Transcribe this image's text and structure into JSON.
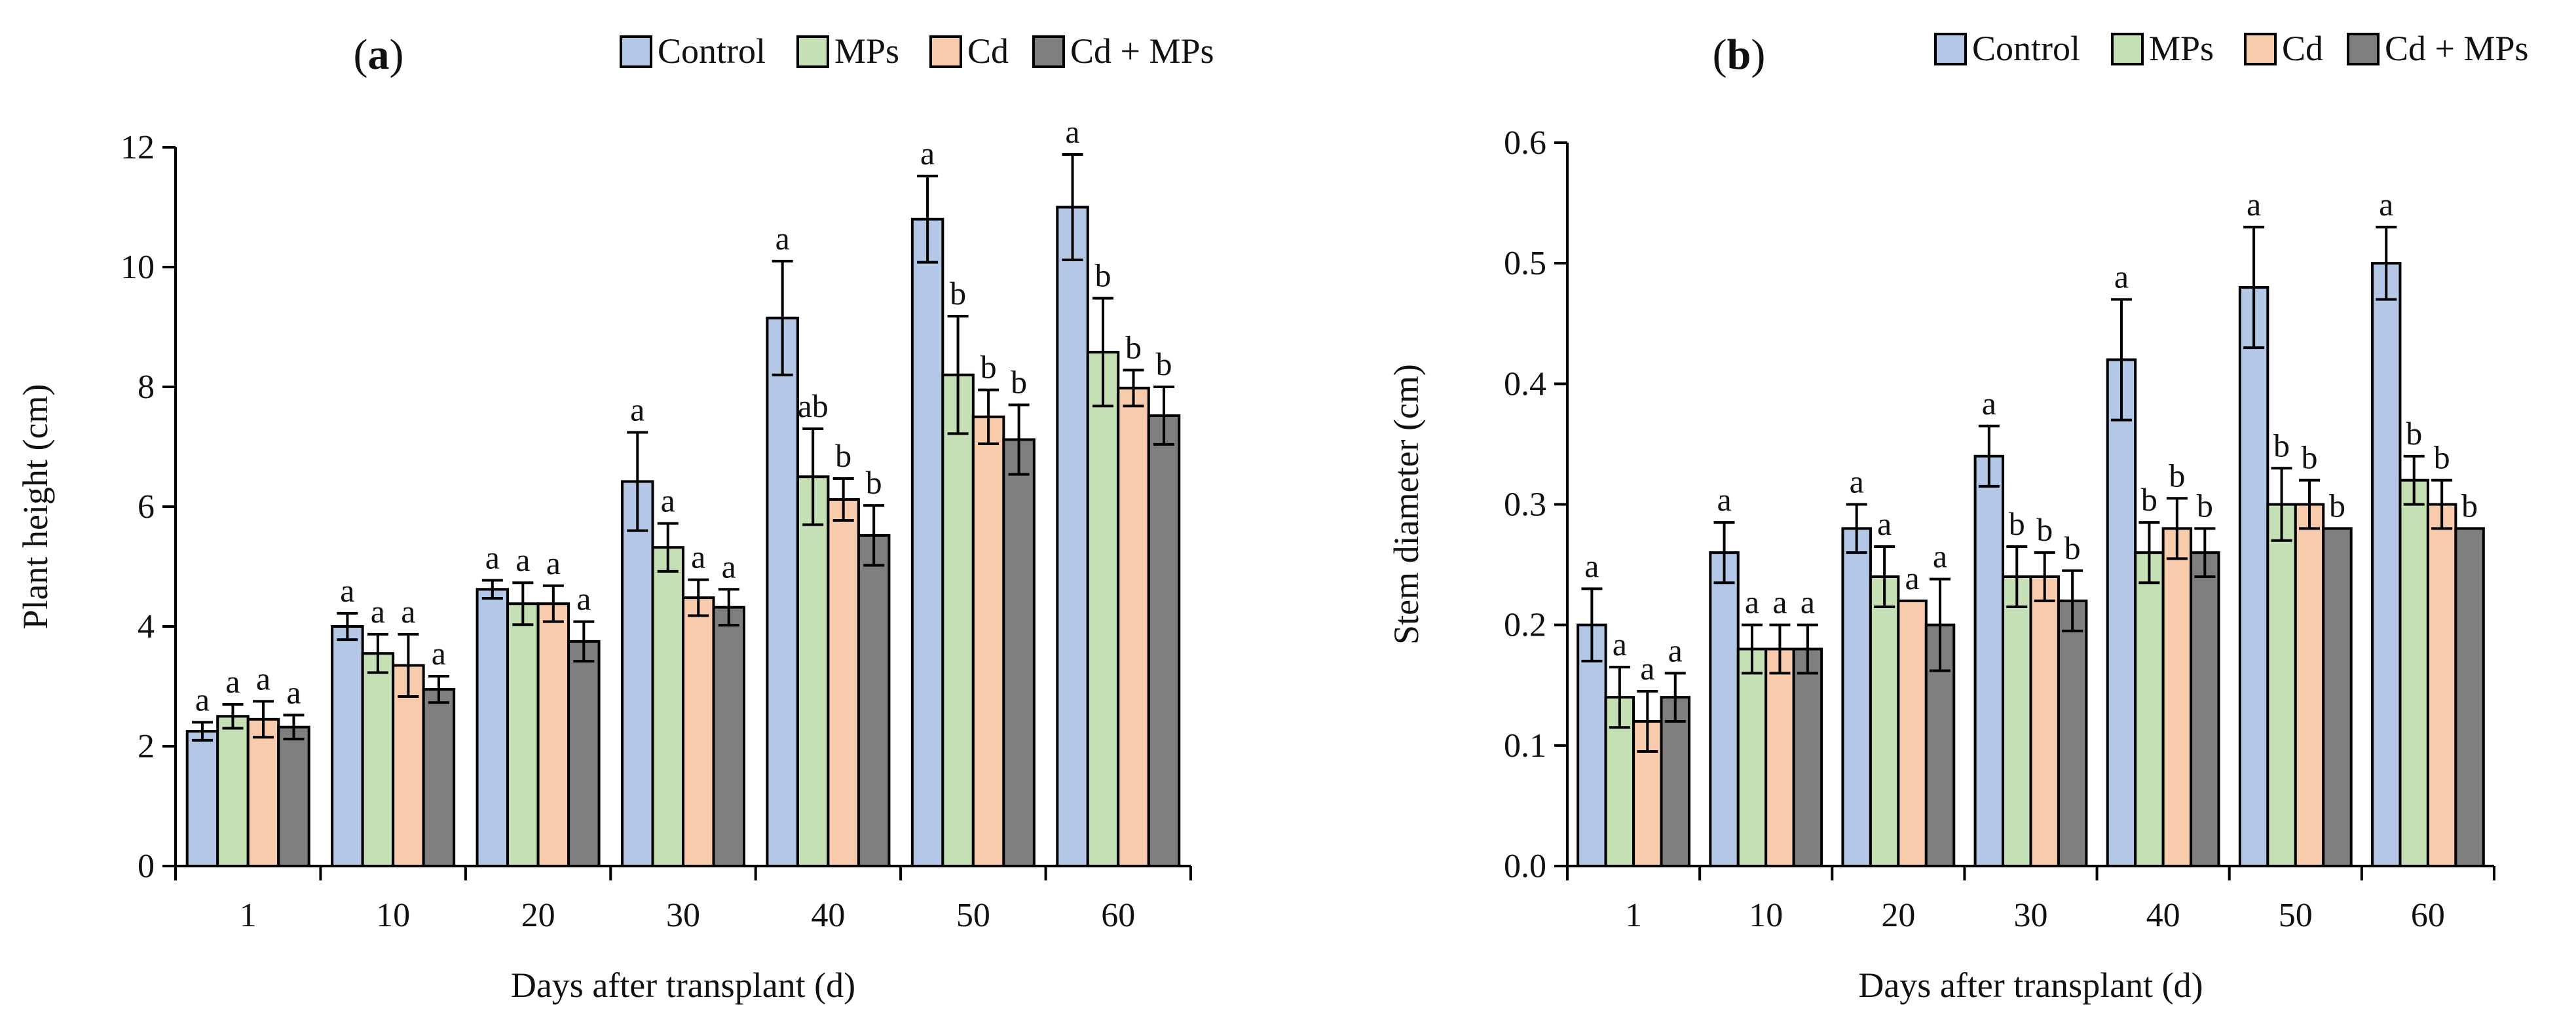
{
  "chart_data": [
    {
      "type": "bar",
      "panel_label": "a",
      "title": "",
      "xlabel": "Days after transplant (d)",
      "ylabel": "Plant height (cm)",
      "ylim": [
        0,
        12
      ],
      "yticks": [
        "0",
        "2",
        "4",
        "6",
        "8",
        "10",
        "12"
      ],
      "grid": false,
      "legend_position": "top",
      "categories": [
        "1",
        "10",
        "20",
        "30",
        "40",
        "50",
        "60"
      ],
      "series": [
        {
          "name": "Control",
          "color": "#b4c7e7",
          "values": [
            2.25,
            4.0,
            4.62,
            6.42,
            9.15,
            10.8,
            11.0
          ],
          "errors": [
            0.15,
            0.22,
            0.15,
            0.82,
            0.95,
            0.72,
            0.88
          ],
          "letters": [
            "a",
            "a",
            "a",
            "a",
            "a",
            "a",
            "a"
          ]
        },
        {
          "name": "MPs",
          "color": "#c5e0b4",
          "values": [
            2.5,
            3.55,
            4.38,
            5.32,
            6.5,
            8.2,
            8.58
          ],
          "errors": [
            0.2,
            0.32,
            0.35,
            0.4,
            0.8,
            0.98,
            0.9
          ],
          "letters": [
            "a",
            "a",
            "a",
            "a",
            "ab",
            "b",
            "b"
          ]
        },
        {
          "name": "Cd",
          "color": "#f8cbad",
          "values": [
            2.45,
            3.35,
            4.38,
            4.48,
            6.12,
            7.5,
            7.98
          ],
          "errors": [
            0.3,
            0.52,
            0.3,
            0.3,
            0.35,
            0.45,
            0.3
          ],
          "letters": [
            "a",
            "a",
            "a",
            "a",
            "b",
            "b",
            "b"
          ]
        },
        {
          "name": "Cd + MPs",
          "color": "#7f7f7f",
          "values": [
            2.32,
            2.95,
            3.75,
            4.32,
            5.52,
            7.12,
            7.52
          ],
          "errors": [
            0.2,
            0.22,
            0.33,
            0.3,
            0.5,
            0.58,
            0.48
          ],
          "letters": [
            "a",
            "a",
            "a",
            "a",
            "b",
            "b",
            "b"
          ]
        }
      ]
    },
    {
      "type": "bar",
      "panel_label": "b",
      "title": "",
      "xlabel": "Days after transplant (d)",
      "ylabel": "Stem diameter (cm)",
      "ylim": [
        0,
        0.6
      ],
      "yticks": [
        "0.0",
        "0.1",
        "0.2",
        "0.3",
        "0.4",
        "0.5",
        "0.6"
      ],
      "grid": false,
      "legend_position": "top",
      "categories": [
        "1",
        "10",
        "20",
        "30",
        "40",
        "50",
        "60"
      ],
      "series": [
        {
          "name": "Control",
          "color": "#b4c7e7",
          "values": [
            0.2,
            0.26,
            0.28,
            0.34,
            0.42,
            0.48,
            0.5
          ],
          "errors": [
            0.03,
            0.025,
            0.02,
            0.025,
            0.05,
            0.05,
            0.03
          ],
          "letters": [
            "a",
            "a",
            "a",
            "a",
            "a",
            "a",
            "a"
          ]
        },
        {
          "name": "MPs",
          "color": "#c5e0b4",
          "values": [
            0.14,
            0.18,
            0.24,
            0.24,
            0.26,
            0.3,
            0.32
          ],
          "errors": [
            0.025,
            0.02,
            0.025,
            0.025,
            0.025,
            0.03,
            0.02
          ],
          "letters": [
            "a",
            "a",
            "a",
            "b",
            "b",
            "b",
            "b"
          ]
        },
        {
          "name": "Cd",
          "color": "#f8cbad",
          "values": [
            0.12,
            0.18,
            0.22,
            0.24,
            0.28,
            0.3,
            0.3
          ],
          "errors": [
            0.025,
            0.02,
            0.0,
            0.02,
            0.025,
            0.02,
            0.02
          ],
          "letters": [
            "a",
            "a",
            "a",
            "b",
            "b",
            "b",
            "b"
          ]
        },
        {
          "name": "Cd + MPs",
          "color": "#7f7f7f",
          "values": [
            0.14,
            0.18,
            0.2,
            0.22,
            0.26,
            0.28,
            0.28
          ],
          "errors": [
            0.02,
            0.02,
            0.038,
            0.025,
            0.02,
            0.0,
            0.0
          ],
          "letters": [
            "a",
            "a",
            "a",
            "b",
            "b",
            "b",
            "b"
          ]
        }
      ]
    }
  ]
}
